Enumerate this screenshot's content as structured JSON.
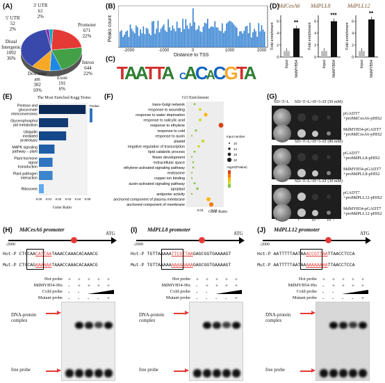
{
  "panels": {
    "A": "(A)",
    "B": "(B)",
    "C": "(C)",
    "D": "(D)",
    "E": "(E)",
    "F": "(F)",
    "G": "(G)",
    "H": "(H)",
    "I": "(I)",
    "J": "(J)"
  },
  "pie": {
    "slices": [
      {
        "name": "Promoter",
        "count": "671",
        "pct": "22%",
        "color": "#e53935"
      },
      {
        "name": "Intron",
        "count": "644",
        "pct": "22%",
        "color": "#43a047"
      },
      {
        "name": "Exon",
        "count": "191",
        "pct": "6%",
        "color": "#1e88e5"
      },
      {
        "name": "Downstream",
        "count": "302",
        "pct": "10%",
        "color": "#f9a825"
      },
      {
        "name": "Distal Intergenic",
        "count": "1092",
        "pct": "36%",
        "color": "#3949ab"
      },
      {
        "name": "5' UTR",
        "count": "52",
        "pct": "2%",
        "color": "#8e24aa"
      },
      {
        "name": "3' UTR",
        "count": "61",
        "pct": "2%",
        "color": "#00acc1"
      }
    ],
    "label_5utr": "5' UTR",
    "v_5utr": "52",
    "p_5utr": "2%",
    "label_3utr": "3' UTR",
    "v_3utr": "61",
    "p_3utr": "2%",
    "label_prom": "Promoter",
    "v_prom": "671",
    "p_prom": "22%",
    "label_dist": "Distal",
    "label_dist2": "Intergenic",
    "v_dist": "1092",
    "p_dist": "36%",
    "label_intron": "Intron",
    "v_intron": "644",
    "p_intron": "22%",
    "label_down": "Downstre",
    "label_down2": "am",
    "v_down": "302",
    "p_down": "10%",
    "label_exon": "Exon",
    "v_exon": "191",
    "p_exon": "6%"
  },
  "tss": {
    "ylabel": "Peaks count",
    "xlabel": "Distance to TSS",
    "xticks": [
      "-2000",
      "-1000",
      "0",
      "1000",
      "2000"
    ]
  },
  "motif": {
    "letters1": "TAATTA",
    "letters2": "CAACGTTA"
  },
  "fold": {
    "genes": [
      "MdCesA6",
      "MdPLL8",
      "MdPLL12"
    ],
    "ylabel": "Fold enrichment",
    "groups": [
      "Input",
      "MdMYB54"
    ],
    "sig": [
      "**",
      "***",
      "**"
    ],
    "values": [
      [
        1,
        4.8
      ],
      [
        1,
        6.0
      ],
      [
        1,
        6.3
      ]
    ],
    "ymax": 7,
    "yticks": [
      "0",
      "2",
      "4",
      "6"
    ]
  },
  "kegg": {
    "title": "The Most Enriched Kegg Terms",
    "xlabel": "Gene Ratio",
    "legend_title": "Pvalue",
    "terms": [
      "Pentose and glucuronate interconversions",
      "Glycerophospholipid metabolism",
      "Ubiquitin mediated proteolysis",
      "MAPK signaling pathway – plant",
      "Plant hormone signal transduction",
      "Plant-pathogen interaction",
      "Ribosome"
    ],
    "terms_short": [
      "Pentose and\nglucuronate\ninterconversions",
      "Glycerophosphol\npid metabolism",
      "Ubiquitin\nmediated\nproteolysis",
      "MAPK signaling\npathway – plant",
      "Plant hormone\nsignal\ntransduction",
      "Plant-pathogen\ninteraction",
      "Ribosome"
    ],
    "values": [
      0.048,
      0.03,
      0.028,
      0.016,
      0.014,
      0.014,
      0.005
    ],
    "xticks": [
      "0.00",
      "0.01",
      "0.02",
      "0.03",
      "0.04",
      "0.05"
    ]
  },
  "go": {
    "title": "GO Enrichment",
    "xlabel": "Gene Ratio",
    "size_title": "Input number",
    "size_ticks": [
      "10",
      "14",
      "18",
      "22"
    ],
    "color_title": "-log10(PValue)",
    "terms": [
      "trans-Golgi network",
      "response to wounding",
      "response to water deprivation",
      "response to salicylic acid",
      "response to ethylene",
      "response to cold",
      "response to auxin",
      "plastid",
      "negative regulation of transcription",
      "lipid catabolic process",
      "flower development",
      "extracellular space",
      "ethylene-activated signaling pathway",
      "endosome",
      "copper ion binding",
      "auxin-activated signaling pathway",
      "apoplast",
      "antiporter activity",
      "anchored component of plasma membrane",
      "anchored component of membrane"
    ],
    "ratios": [
      0.026,
      0.03,
      0.034,
      0.03,
      0.045,
      0.027,
      0.024,
      0.032,
      0.029,
      0.026,
      0.024,
      0.025,
      0.025,
      0.024,
      0.024,
      0.026,
      0.028,
      0.024,
      0.036,
      0.038
    ],
    "xticks": [
      "0.03",
      "0.04"
    ]
  },
  "yeast": {
    "headers": [
      "SD/-T/-L",
      "SD/-T/-L/-H+3-AT (50 mM)",
      "SD/-T/-L/-H+3-AT (80 mM)",
      "SD/-T/-L/-H+3-AT (30 mM)"
    ],
    "rows": [
      {
        "line1": "pGADT7",
        "line2": "+proMdCesA6-pHIS2"
      },
      {
        "line1": "MdMYB54-pGADT7",
        "line2": "+proMdCesA6-pHIS2"
      },
      {
        "line1": "pGADT7",
        "line2": "+proMdPLL8-pHIS2"
      },
      {
        "line1": "MdMYB54-pGADT7",
        "line2": "+proMdPLL8-pHIS2"
      },
      {
        "line1": "pGADT7",
        "line2": "+proMdPLL12-pHIS2"
      },
      {
        "line1": "MdMYB54-pGADT7",
        "line2": "+proMdPLL12-pHIS2"
      }
    ],
    "dilutions": [
      "1",
      "1",
      "10⁻¹",
      "10⁻²"
    ]
  },
  "emsa": [
    {
      "title": "MdCesA6 promoter",
      "start": "-2000",
      "atg": "ATG",
      "hot_label": "Hot-P",
      "mut_label": "Mut-P",
      "hot_seq_a": "CTGCAA",
      "hot_seq_box": "CATTAA",
      "hot_seq_b": "TAAACCAAACACAAACG",
      "mut_seq_a": "CTGCAG",
      "mut_seq_box": "AAAAAA",
      "mut_seq_b": "TAAACCAAACACAAACG"
    },
    {
      "title": "MdPLL8 promoter",
      "start": "-2000",
      "atg": "ATG",
      "hot_label": "Hot-P",
      "mut_label": "Mut-P",
      "hot_seq_a": "TGTTAAAAA",
      "hot_seq_box": "TTCGTTAA",
      "hot_seq_b": "GAGCGGTGAAAAGT",
      "mut_seq_a": "TGTTAAAAA",
      "mut_seq_box": "AAAAAAAA",
      "mut_seq_b": "GAGCGGTGAAAAGT"
    },
    {
      "title": "MdPLL12 promoter",
      "start": "-2000",
      "atg": "ATG",
      "hot_label": "Hot-P",
      "mut_label": "Mut-P",
      "hot_seq_a": "AATTTTTAATAA",
      "hot_seq_box": "ACCGTTAA",
      "hot_seq_b": "TTAACCTCCA",
      "mut_seq_a": "AATTTTTAATAA",
      "mut_seq_box": "AAAAAAAA",
      "mut_seq_b": "TTAACCTCCA"
    }
  ],
  "emsa_common": {
    "rows": [
      "Hot probe",
      "MdMYB54-His",
      "Cold probe",
      "Mutant probe"
    ],
    "signs": [
      [
        "+",
        "+",
        "+",
        "+",
        "+"
      ],
      [
        "-",
        "+",
        "+",
        "+",
        "+"
      ],
      [
        "-",
        "-",
        "",
        "",
        "-"
      ],
      [
        "-",
        "-",
        "-",
        "-",
        "+"
      ]
    ],
    "complex": "DNA-protein complex",
    "complex1": "DNA-protein",
    "complex2": "complex",
    "free": "free probe"
  }
}
